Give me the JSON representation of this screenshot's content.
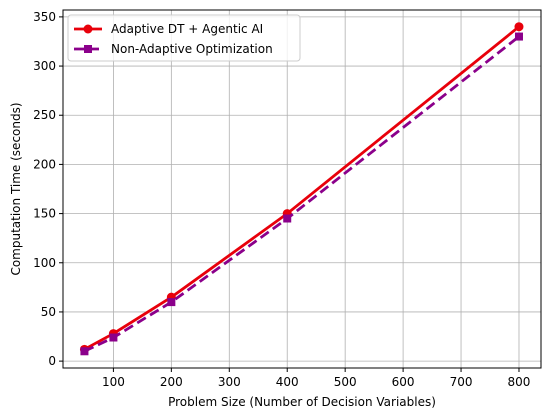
{
  "chart_data": {
    "type": "line",
    "title": "",
    "xlabel": "Problem Size (Number of Decision Variables)",
    "ylabel": "Computation Time (seconds)",
    "xlim": [
      13,
      838
    ],
    "ylim": [
      -7,
      357
    ],
    "xticks": [
      100,
      200,
      300,
      400,
      500,
      600,
      700,
      800
    ],
    "yticks": [
      0,
      50,
      100,
      150,
      200,
      250,
      300,
      350
    ],
    "grid": true,
    "legend_position": "top-left",
    "x": [
      50,
      100,
      200,
      400,
      800
    ],
    "series": [
      {
        "name": "Adaptive DT + Agentic AI",
        "values": [
          12,
          28,
          65,
          150,
          340
        ],
        "color": "#e8000b",
        "line_style": "solid",
        "marker": "circle"
      },
      {
        "name": "Non-Adaptive Optimization",
        "values": [
          10,
          24,
          60,
          145,
          330
        ],
        "color": "#8b008b",
        "line_style": "dashed",
        "marker": "square"
      }
    ]
  }
}
